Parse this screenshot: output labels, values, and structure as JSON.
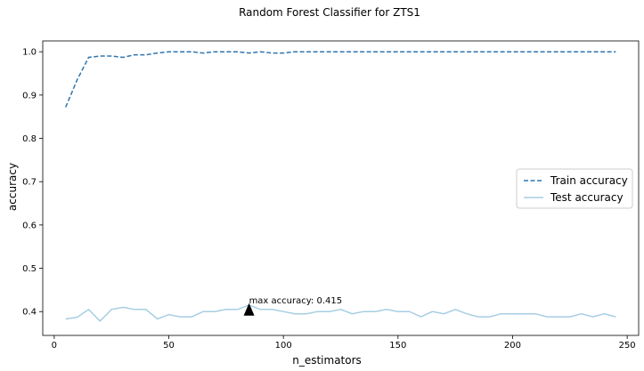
{
  "chart_data": {
    "type": "line",
    "title": "Random Forest Classifier for ZTS1",
    "xlabel": "n_estimators",
    "ylabel": "accuracy",
    "xlim": [
      -5,
      255
    ],
    "ylim": [
      0.345,
      1.025
    ],
    "xticks": [
      0,
      50,
      100,
      150,
      200,
      250
    ],
    "yticks": [
      0.4,
      0.5,
      0.6,
      0.7,
      0.8,
      0.9,
      1.0
    ],
    "ytick_labels": [
      "0.4",
      "0.5",
      "0.6",
      "0.7",
      "0.8",
      "0.9",
      "1.0"
    ],
    "grid": false,
    "legend": "center-right",
    "x": [
      5,
      10,
      15,
      20,
      25,
      30,
      35,
      40,
      45,
      50,
      55,
      60,
      65,
      70,
      75,
      80,
      85,
      90,
      95,
      100,
      105,
      110,
      115,
      120,
      125,
      130,
      135,
      140,
      145,
      150,
      155,
      160,
      165,
      170,
      175,
      180,
      185,
      190,
      195,
      200,
      205,
      210,
      215,
      220,
      225,
      230,
      235,
      240,
      245
    ],
    "series": [
      {
        "name": "Train accuracy",
        "color": "#2e75b0",
        "style": "dashed",
        "values": [
          0.872,
          0.935,
          0.987,
          0.99,
          0.99,
          0.987,
          0.993,
          0.993,
          0.997,
          1.0,
          1.0,
          1.0,
          0.997,
          1.0,
          1.0,
          1.0,
          0.997,
          1.0,
          0.997,
          0.997,
          1.0,
          1.0,
          1.0,
          1.0,
          1.0,
          1.0,
          1.0,
          1.0,
          1.0,
          1.0,
          1.0,
          1.0,
          1.0,
          1.0,
          1.0,
          1.0,
          1.0,
          1.0,
          1.0,
          1.0,
          1.0,
          1.0,
          1.0,
          1.0,
          1.0,
          1.0,
          1.0,
          1.0,
          1.0
        ]
      },
      {
        "name": "Test accuracy",
        "color": "#a6cee3",
        "style": "solid",
        "values": [
          0.383,
          0.387,
          0.405,
          0.378,
          0.405,
          0.41,
          0.405,
          0.405,
          0.383,
          0.393,
          0.388,
          0.388,
          0.4,
          0.4,
          0.405,
          0.405,
          0.415,
          0.405,
          0.405,
          0.4,
          0.395,
          0.395,
          0.4,
          0.4,
          0.405,
          0.395,
          0.4,
          0.4,
          0.405,
          0.4,
          0.4,
          0.388,
          0.4,
          0.395,
          0.405,
          0.395,
          0.388,
          0.388,
          0.395,
          0.395,
          0.395,
          0.395,
          0.388,
          0.388,
          0.388,
          0.395,
          0.388,
          0.395,
          0.388
        ]
      }
    ],
    "annotation": {
      "text": "max accuracy: 0.415",
      "x": 85,
      "y": 0.415,
      "marker": "triangle",
      "marker_y": 0.405
    }
  }
}
